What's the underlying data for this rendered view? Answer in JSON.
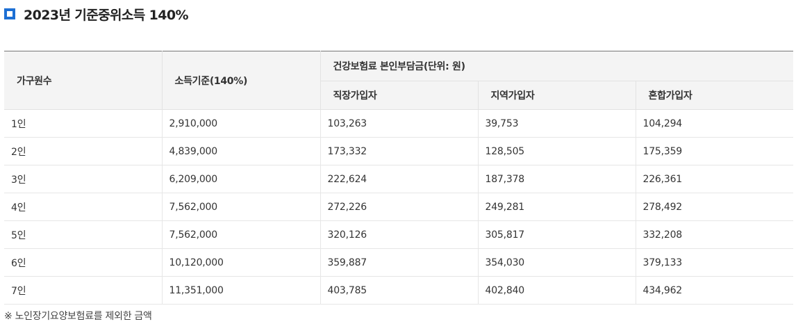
{
  "title": "2023년 기준중위소득 140%",
  "table": {
    "headers": {
      "household": "가구원수",
      "income": "소득기준(140%)",
      "premium_group": "건강보험료 본인부담금(단위: 원)",
      "sub": [
        "직장가입자",
        "지역가입자",
        "혼합가입자"
      ]
    },
    "rows": [
      {
        "household": "1인",
        "income": "2,910,000",
        "workplace": "103,263",
        "regional": "39,753",
        "mixed": "104,294"
      },
      {
        "household": "2인",
        "income": "4,839,000",
        "workplace": "173,332",
        "regional": "128,505",
        "mixed": "175,359"
      },
      {
        "household": "3인",
        "income": "6,209,000",
        "workplace": "222,624",
        "regional": "187,378",
        "mixed": "226,361"
      },
      {
        "household": "4인",
        "income": "7,562,000",
        "workplace": "272,226",
        "regional": "249,281",
        "mixed": "278,492"
      },
      {
        "household": "5인",
        "income": "7,562,000",
        "workplace": "320,126",
        "regional": "305,817",
        "mixed": "332,208"
      },
      {
        "household": "6인",
        "income": "10,120,000",
        "workplace": "359,887",
        "regional": "354,030",
        "mixed": "379,133"
      },
      {
        "household": "7인",
        "income": "11,351,000",
        "workplace": "403,785",
        "regional": "402,840",
        "mixed": "434,962"
      }
    ]
  },
  "footnote": "※ 노인장기요양보험료를 제외한 금액",
  "colors": {
    "accent": "#1d6fd4",
    "header_bg": "#f4f4f4",
    "top_border": "#777777"
  }
}
